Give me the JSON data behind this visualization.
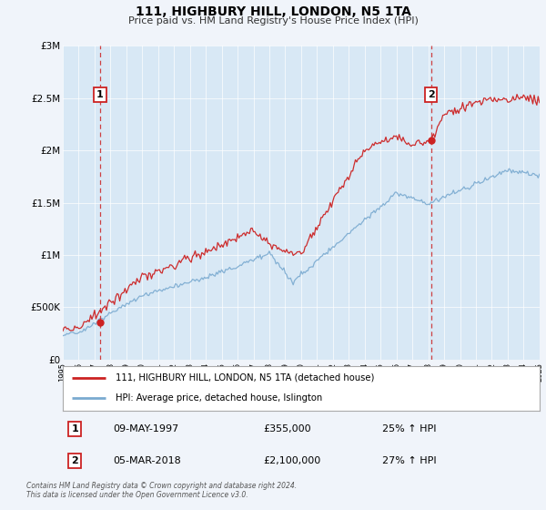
{
  "title": "111, HIGHBURY HILL, LONDON, N5 1TA",
  "subtitle": "Price paid vs. HM Land Registry's House Price Index (HPI)",
  "background_color": "#f0f4fa",
  "plot_bg_color": "#d8e8f5",
  "red_color": "#cc2222",
  "blue_color": "#7aaad0",
  "dashed_color": "#cc2222",
  "ylim": [
    0,
    3000000
  ],
  "yticks": [
    0,
    500000,
    1000000,
    1500000,
    2000000,
    2500000,
    3000000
  ],
  "ytick_labels": [
    "£0",
    "£500K",
    "£1M",
    "£1.5M",
    "£2M",
    "£2.5M",
    "£3M"
  ],
  "sale1_date_x": 1997.35,
  "sale1_price": 355000,
  "sale1_label": "1",
  "sale2_date_x": 2018.17,
  "sale2_price": 2100000,
  "sale2_label": "2",
  "legend_line1": "111, HIGHBURY HILL, LONDON, N5 1TA (detached house)",
  "legend_line2": "HPI: Average price, detached house, Islington",
  "table_row1": [
    "1",
    "09-MAY-1997",
    "£355,000",
    "25% ↑ HPI"
  ],
  "table_row2": [
    "2",
    "05-MAR-2018",
    "£2,100,000",
    "27% ↑ HPI"
  ],
  "footnote1": "Contains HM Land Registry data © Crown copyright and database right 2024.",
  "footnote2": "This data is licensed under the Open Government Licence v3.0.",
  "xmin": 1995,
  "xmax": 2025
}
